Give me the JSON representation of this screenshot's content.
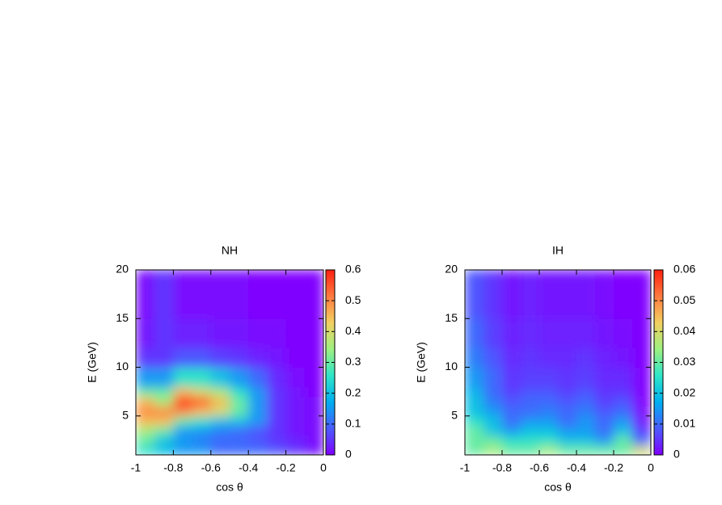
{
  "chart_data": [
    {
      "type": "heatmap",
      "title": "NH",
      "xlabel": "cos θ",
      "ylabel": "E (GeV)",
      "xlim": [
        -1,
        0
      ],
      "xticks": [
        -1,
        -0.8,
        -0.6,
        -0.4,
        -0.2,
        0
      ],
      "ylim": [
        1,
        20
      ],
      "yticks": [
        5,
        10,
        15,
        20
      ],
      "zlim": [
        0,
        0.6
      ],
      "zticks": [
        0,
        0.1,
        0.2,
        0.3,
        0.4,
        0.5,
        0.6
      ],
      "colormap": [
        "#8000ff",
        "#4a5cff",
        "#00aef0",
        "#2ee6c8",
        "#9ef080",
        "#f2d060",
        "#ff7a40",
        "#ff2010"
      ],
      "x_bins": [
        -1,
        -0.9,
        -0.8,
        -0.7,
        -0.6,
        -0.5,
        -0.4,
        -0.3,
        -0.2,
        -0.1,
        0
      ],
      "y_bins": [
        1,
        2,
        3,
        4,
        5,
        6,
        7,
        8,
        10,
        12,
        15,
        20
      ],
      "values": [
        [
          0.25,
          0.2,
          0.15,
          0.15,
          0.1,
          0.1,
          0.1,
          0.08,
          0.05,
          0.02
        ],
        [
          0.3,
          0.2,
          0.15,
          0.12,
          0.1,
          0.1,
          0.08,
          0.05,
          0.03,
          0.01
        ],
        [
          0.35,
          0.3,
          0.15,
          0.15,
          0.12,
          0.1,
          0.08,
          0.05,
          0.02,
          0.01
        ],
        [
          0.45,
          0.45,
          0.3,
          0.25,
          0.2,
          0.2,
          0.15,
          0.05,
          0.02,
          0.01
        ],
        [
          0.5,
          0.5,
          0.5,
          0.45,
          0.4,
          0.3,
          0.15,
          0.05,
          0.02,
          0.01
        ],
        [
          0.45,
          0.35,
          0.6,
          0.55,
          0.45,
          0.3,
          0.15,
          0.05,
          0.02,
          0.01
        ],
        [
          0.3,
          0.3,
          0.45,
          0.4,
          0.35,
          0.25,
          0.15,
          0.05,
          0.02,
          0
        ],
        [
          0.15,
          0.15,
          0.25,
          0.25,
          0.2,
          0.15,
          0.1,
          0.04,
          0.01,
          0
        ],
        [
          0.05,
          0.05,
          0.08,
          0.08,
          0.06,
          0.05,
          0.03,
          0.02,
          0,
          0
        ],
        [
          0.02,
          0.05,
          0.03,
          0.03,
          0.02,
          0.02,
          0.01,
          0.01,
          0,
          0
        ],
        [
          0.01,
          0.05,
          0.01,
          0.01,
          0.01,
          0.01,
          0,
          0,
          0,
          0
        ]
      ]
    },
    {
      "type": "heatmap",
      "title": "IH",
      "xlabel": "cos θ",
      "ylabel": "E (GeV)",
      "xlim": [
        -1,
        0
      ],
      "xticks": [
        -1,
        -0.8,
        -0.6,
        -0.4,
        -0.2,
        0
      ],
      "ylim": [
        1,
        20
      ],
      "yticks": [
        5,
        10,
        15,
        20
      ],
      "zlim": [
        0,
        0.06
      ],
      "zticks": [
        0,
        0.01,
        0.02,
        0.03,
        0.04,
        0.05,
        0.06
      ],
      "colormap": [
        "#8000ff",
        "#4a5cff",
        "#00aef0",
        "#2ee6c8",
        "#9ef080",
        "#f2d060",
        "#ff7a40",
        "#ff2010"
      ],
      "x_bins": [
        -1,
        -0.9,
        -0.8,
        -0.7,
        -0.6,
        -0.5,
        -0.4,
        -0.3,
        -0.2,
        -0.1,
        0
      ],
      "y_bins": [
        1,
        2,
        3,
        4,
        5,
        6,
        7,
        8,
        10,
        12,
        15,
        20
      ],
      "values": [
        [
          0.03,
          0.035,
          0.03,
          0.03,
          0.035,
          0.03,
          0.03,
          0.03,
          0.03,
          0.04
        ],
        [
          0.03,
          0.03,
          0.025,
          0.025,
          0.025,
          0.02,
          0.02,
          0.015,
          0.03,
          0.01
        ],
        [
          0.03,
          0.02,
          0.015,
          0.02,
          0.02,
          0.015,
          0.015,
          0.01,
          0.02,
          0.005
        ],
        [
          0.025,
          0.02,
          0.01,
          0.015,
          0.015,
          0.01,
          0.015,
          0.01,
          0.015,
          0.002
        ],
        [
          0.02,
          0.015,
          0.01,
          0.01,
          0.012,
          0.01,
          0.012,
          0.008,
          0.01,
          0.001
        ],
        [
          0.02,
          0.012,
          0.008,
          0.01,
          0.01,
          0.008,
          0.01,
          0.006,
          0.008,
          0
        ],
        [
          0.018,
          0.01,
          0.006,
          0.008,
          0.008,
          0.006,
          0.008,
          0.005,
          0.005,
          0
        ],
        [
          0.015,
          0.01,
          0.005,
          0.006,
          0.006,
          0.005,
          0.006,
          0.004,
          0.004,
          0
        ],
        [
          0.012,
          0.008,
          0.004,
          0.005,
          0.004,
          0.004,
          0.005,
          0.003,
          0.002,
          0
        ],
        [
          0.01,
          0.006,
          0.003,
          0.004,
          0.003,
          0.003,
          0.003,
          0.002,
          0.001,
          0
        ],
        [
          0.008,
          0.005,
          0.002,
          0.003,
          0.002,
          0.002,
          0.002,
          0.001,
          0,
          0
        ]
      ]
    }
  ]
}
